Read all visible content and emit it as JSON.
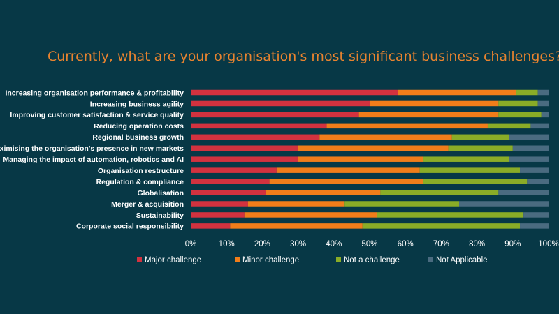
{
  "title": "Currently, what are your organisation's most significant business challenges?",
  "chart_data": {
    "type": "bar",
    "orientation": "horizontal",
    "stacked": "100%",
    "title": "Currently, what are your organisation's most significant business challenges?",
    "categories": [
      "Increasing organisation performance & profitability",
      "Increasing business agility",
      "Improving customer satisfaction & service quality",
      "Reducing operation costs",
      "Regional business growth",
      "Maximising the organisation's presence in new markets",
      "Managing the impact of automation, robotics and AI",
      "Organisation restructure",
      "Regulation & compliance",
      "Globalisation",
      "Merger & acquisition",
      "Sustainability",
      "Corporate social responsibility"
    ],
    "series": [
      {
        "name": "Major challenge",
        "color": "#d2323f",
        "values": [
          58,
          50,
          47,
          38,
          36,
          30,
          30,
          24,
          22,
          21,
          16,
          15,
          11
        ]
      },
      {
        "name": "Minor challenge",
        "color": "#f07d1a",
        "values": [
          33,
          36,
          39,
          45,
          37,
          42,
          35,
          40,
          43,
          32,
          27,
          37,
          37
        ]
      },
      {
        "name": "Not a challenge",
        "color": "#8aac27",
        "values": [
          6,
          11,
          12,
          12,
          16,
          18,
          24,
          28,
          29,
          33,
          32,
          41,
          44
        ]
      },
      {
        "name": "Not Applicable",
        "color": "#4a6b80",
        "values": [
          3,
          3,
          2,
          5,
          11,
          10,
          11,
          8,
          6,
          14,
          25,
          7,
          8
        ]
      }
    ],
    "xticks": [
      "0%",
      "10%",
      "20%",
      "30%",
      "40%",
      "50%",
      "60%",
      "70%",
      "80%",
      "90%",
      "100%"
    ],
    "xlim": [
      0,
      100
    ],
    "grid": false,
    "legend_position": "bottom"
  }
}
